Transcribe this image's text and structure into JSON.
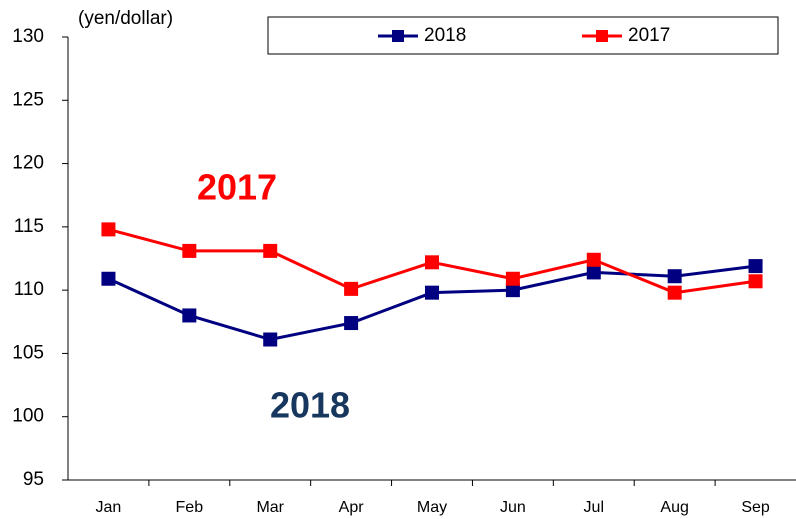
{
  "chart_data": {
    "type": "line",
    "y_axis_label": "(yen/dollar)",
    "categories": [
      "Jan",
      "Feb",
      "Mar",
      "Apr",
      "May",
      "Jun",
      "Jul",
      "Aug",
      "Sep"
    ],
    "series": [
      {
        "name": "2018",
        "color": "#000080",
        "values": [
          110.9,
          108.0,
          106.1,
          107.4,
          109.8,
          110.0,
          111.4,
          111.1,
          111.9
        ]
      },
      {
        "name": "2017",
        "color": "#ff0000",
        "values": [
          114.8,
          113.1,
          113.1,
          110.1,
          112.2,
          110.9,
          112.4,
          109.8,
          110.7
        ]
      }
    ],
    "annotations": [
      {
        "text": "2017",
        "color": "#ff0000"
      },
      {
        "text": "2018",
        "color": "#17375e"
      }
    ],
    "ylim": [
      95,
      130
    ],
    "yticks": [
      95,
      100,
      105,
      110,
      115,
      120,
      125,
      130
    ],
    "grid": false
  }
}
